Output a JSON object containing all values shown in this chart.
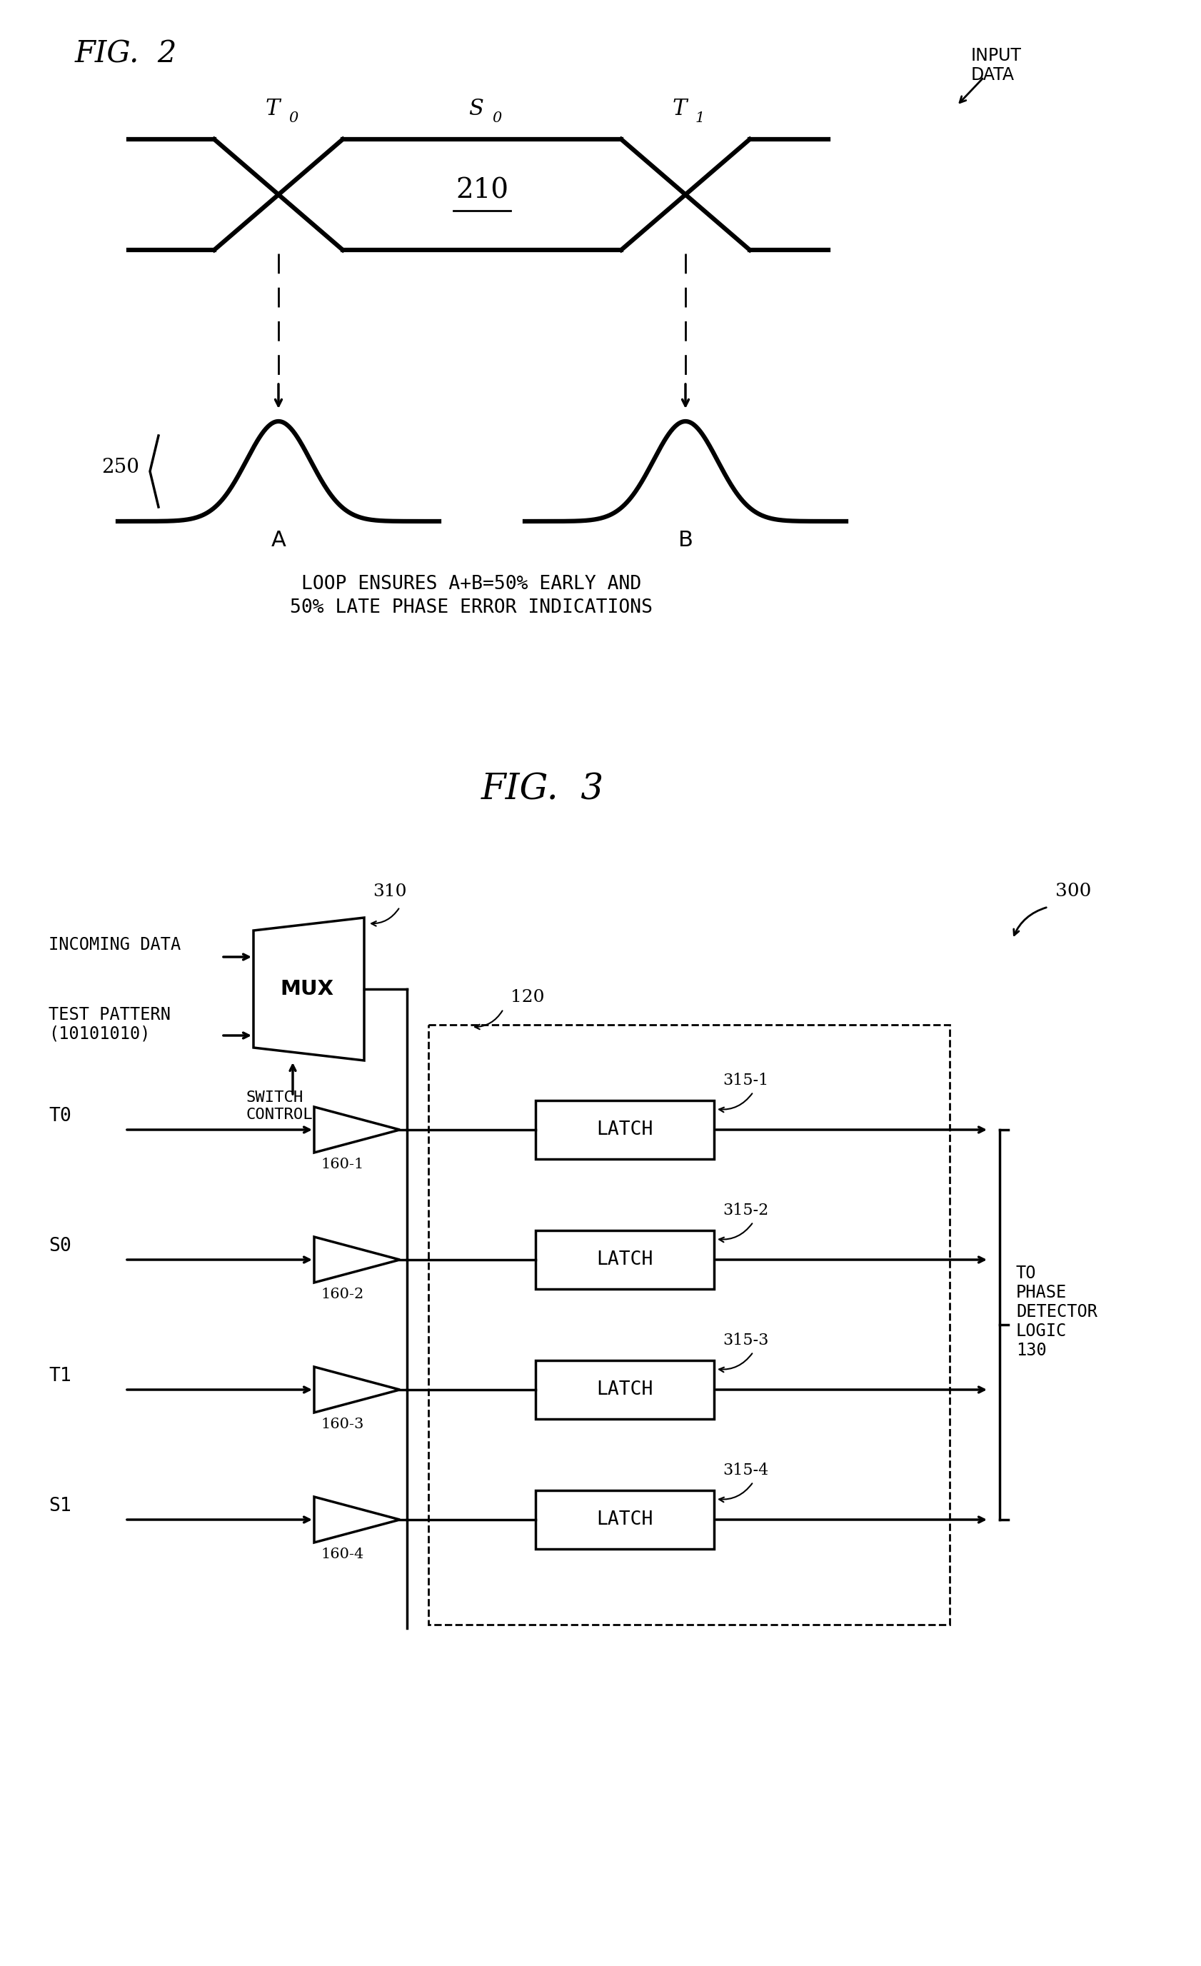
{
  "fig2_title": "FIG.  2",
  "fig3_title": "FIG.  3",
  "background_color": "#ffffff",
  "line_color": "#000000",
  "fig2_label_210": "210",
  "fig2_label_250": "250",
  "fig2_label_T0": "T",
  "fig2_label_S0": "S",
  "fig2_label_T1": "T",
  "fig2_sub_T0": "0",
  "fig2_sub_S0": "0",
  "fig2_sub_T1": "1",
  "fig2_label_A": "A",
  "fig2_label_B": "B",
  "fig2_label_INPUT": "INPUT",
  "fig2_label_DATA": "DATA",
  "fig2_caption_line1": "LOOP ENSURES A+B=50% EARLY AND",
  "fig2_caption_line2": "50% LATE PHASE ERROR INDICATIONS",
  "fig3_label_300": "300",
  "fig3_label_310": "310",
  "fig3_label_120": "120",
  "fig3_incoming": "INCOMING DATA",
  "fig3_testpattern": "TEST PATTERN",
  "fig3_testval": "(10101010)",
  "fig3_mux": "MUX",
  "fig3_switch": "SWITCH",
  "fig3_control": "CONTROL",
  "fig3_T0": "T0",
  "fig3_S0": "S0",
  "fig3_T1": "T1",
  "fig3_S1": "S1",
  "fig3_160_1": "160-1",
  "fig3_160_2": "160-2",
  "fig3_160_3": "160-3",
  "fig3_160_4": "160-4",
  "fig3_315_1": "315-1",
  "fig3_315_2": "315-2",
  "fig3_315_3": "315-3",
  "fig3_315_4": "315-4",
  "fig3_latch": "LATCH",
  "fig3_to_phase": "TO",
  "fig3_phase_det": "PHASE",
  "fig3_detector": "DETECTOR",
  "fig3_logic": "LOGIC",
  "fig3_130": "130"
}
